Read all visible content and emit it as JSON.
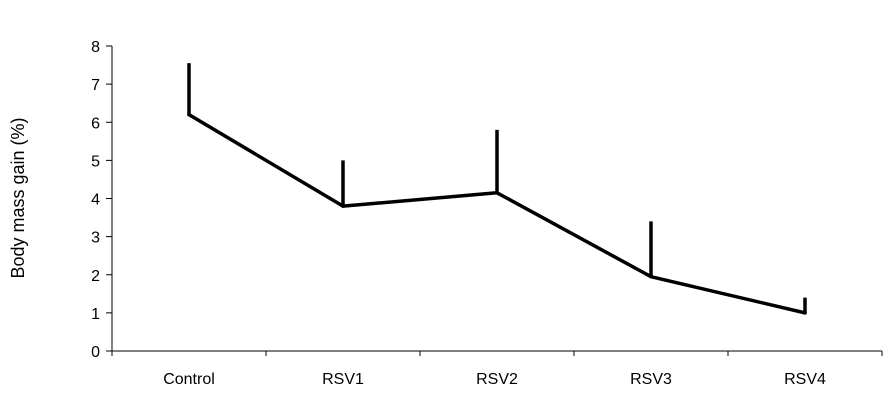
{
  "chart_data": {
    "type": "line",
    "categories": [
      "Control",
      "RSV1",
      "RSV2",
      "RSV3",
      "RSV4"
    ],
    "series": [
      {
        "values": [
          6.2,
          3.8,
          4.15,
          1.95,
          1.0
        ],
        "error_upper": [
          1.35,
          1.2,
          1.65,
          1.45,
          0.4
        ]
      }
    ],
    "ylabel": "Body mass gain (%)",
    "xlabel": "",
    "title": "",
    "ylim": [
      0,
      8
    ],
    "yticks": [
      0,
      1,
      2,
      3,
      4,
      5,
      6,
      7,
      8
    ],
    "grid": false,
    "legend": "none",
    "colors": {
      "line": "#000000",
      "axis": "#000000"
    }
  }
}
